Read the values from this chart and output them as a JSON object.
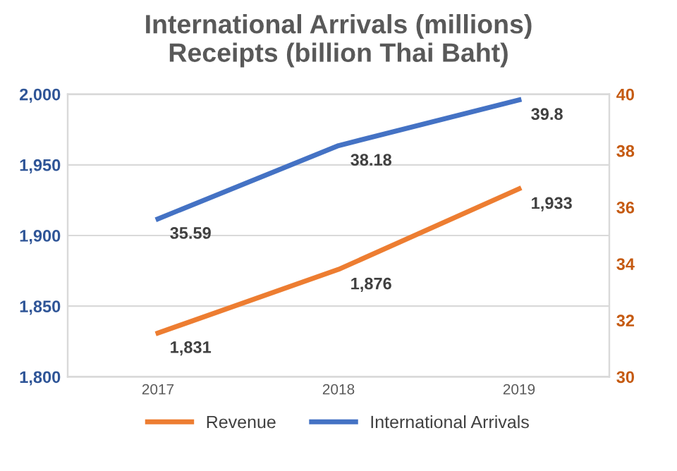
{
  "chart_data": {
    "type": "line",
    "title": "International Arrivals (millions)\nReceipts (billion Thai Baht)",
    "categories": [
      "2017",
      "2018",
      "2019"
    ],
    "series": [
      {
        "name": "Revenue",
        "color": "#ed7d31",
        "values": [
          1831,
          1876,
          1933
        ],
        "value_labels": [
          "1,831",
          "1,876",
          "1,933"
        ]
      },
      {
        "name": "International Arrivals",
        "color": "#4472c4",
        "axis": "y2",
        "values": [
          35.59,
          38.18,
          39.8
        ],
        "value_labels": [
          "35.59",
          "38.18",
          "39.8"
        ]
      }
    ],
    "ylim": [
      1800,
      2000
    ],
    "yticks": [
      {
        "value": 1800,
        "label": "1,800"
      },
      {
        "value": 1850,
        "label": "1,850"
      },
      {
        "value": 1900,
        "label": "1,900"
      },
      {
        "value": 1950,
        "label": "1,950"
      },
      {
        "value": 2000,
        "label": "2,000"
      }
    ],
    "y2lim": [
      30,
      40
    ],
    "y2ticks": [
      30,
      32,
      34,
      36,
      38,
      40
    ],
    "grid": "y",
    "legend": "bottom",
    "marker": "none",
    "line_style": "solid"
  }
}
